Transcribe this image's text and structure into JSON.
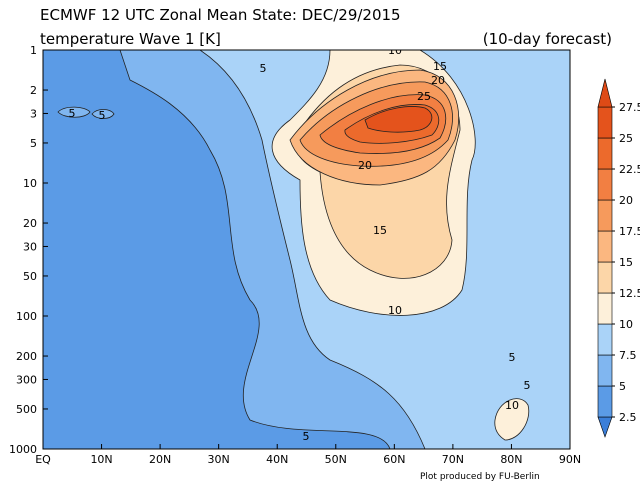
{
  "chart_data": {
    "type": "contour",
    "title": "ECMWF 12 UTC Zonal Mean State: DEC/29/2015",
    "subtitle": "temperature Wave 1 [K]",
    "forecast_note": "(10-day forecast)",
    "credit": "Plot produced by FU-Berlin",
    "xlim": [
      0,
      90
    ],
    "xticks": [
      {
        "value": 0,
        "label": "EQ"
      },
      {
        "value": 10,
        "label": "10N"
      },
      {
        "value": 20,
        "label": "20N"
      },
      {
        "value": 30,
        "label": "30N"
      },
      {
        "value": 40,
        "label": "40N"
      },
      {
        "value": 50,
        "label": "50N"
      },
      {
        "value": 60,
        "label": "60N"
      },
      {
        "value": 70,
        "label": "70N"
      },
      {
        "value": 80,
        "label": "80N"
      },
      {
        "value": 90,
        "label": "90N"
      }
    ],
    "ylim": [
      1000,
      1
    ],
    "ylog": true,
    "yticks": [
      1,
      2,
      3,
      5,
      10,
      20,
      30,
      50,
      100,
      200,
      300,
      500,
      1000
    ],
    "levels": [
      2.5,
      5,
      7.5,
      10,
      12.5,
      15,
      17.5,
      20,
      22.5,
      25,
      27.5
    ],
    "colors": [
      "#3b7fd9",
      "#5b9be6",
      "#80b6f0",
      "#aad3f8",
      "#fdf0da",
      "#fcd6a8",
      "#fbb780",
      "#f69a5c",
      "#f27f42",
      "#ec6a2c",
      "#e4531c",
      "#de4a16"
    ],
    "contour_labels": [
      10,
      15,
      20,
      25,
      5,
      5,
      5,
      20,
      15,
      10,
      5,
      5,
      10,
      5
    ]
  }
}
